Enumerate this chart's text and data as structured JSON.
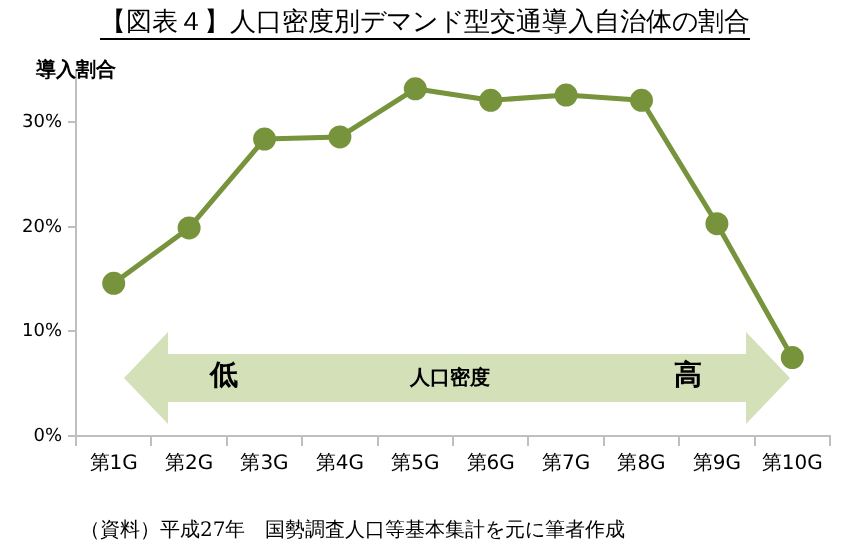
{
  "chart_data": {
    "type": "line",
    "title": "【図表４】人口密度別デマンド型交通導入自治体の割合",
    "ylabel": "導入割合",
    "categories": [
      "第1G",
      "第2G",
      "第3G",
      "第4G",
      "第5G",
      "第6G",
      "第7G",
      "第8G",
      "第9G",
      "第10G"
    ],
    "series": [
      {
        "color": "#77933c",
        "values": [
          14.6,
          19.9,
          28.4,
          28.6,
          33.2,
          32.1,
          32.6,
          32.1,
          20.3,
          7.5
        ]
      }
    ],
    "ylim": [
      0,
      35
    ],
    "yticks": [
      {
        "value": 0,
        "label": "0%"
      },
      {
        "value": 10,
        "label": "10%"
      },
      {
        "value": 20,
        "label": "20%"
      },
      {
        "value": 30,
        "label": "30%"
      }
    ],
    "grid": false,
    "legend": false,
    "marker": "circle",
    "line_style": "solid",
    "annotations": [
      "低",
      "人口密度",
      "高",
      "（資料）平成27年　国勢調査人口等基本集計を元に筆者作成"
    ]
  }
}
